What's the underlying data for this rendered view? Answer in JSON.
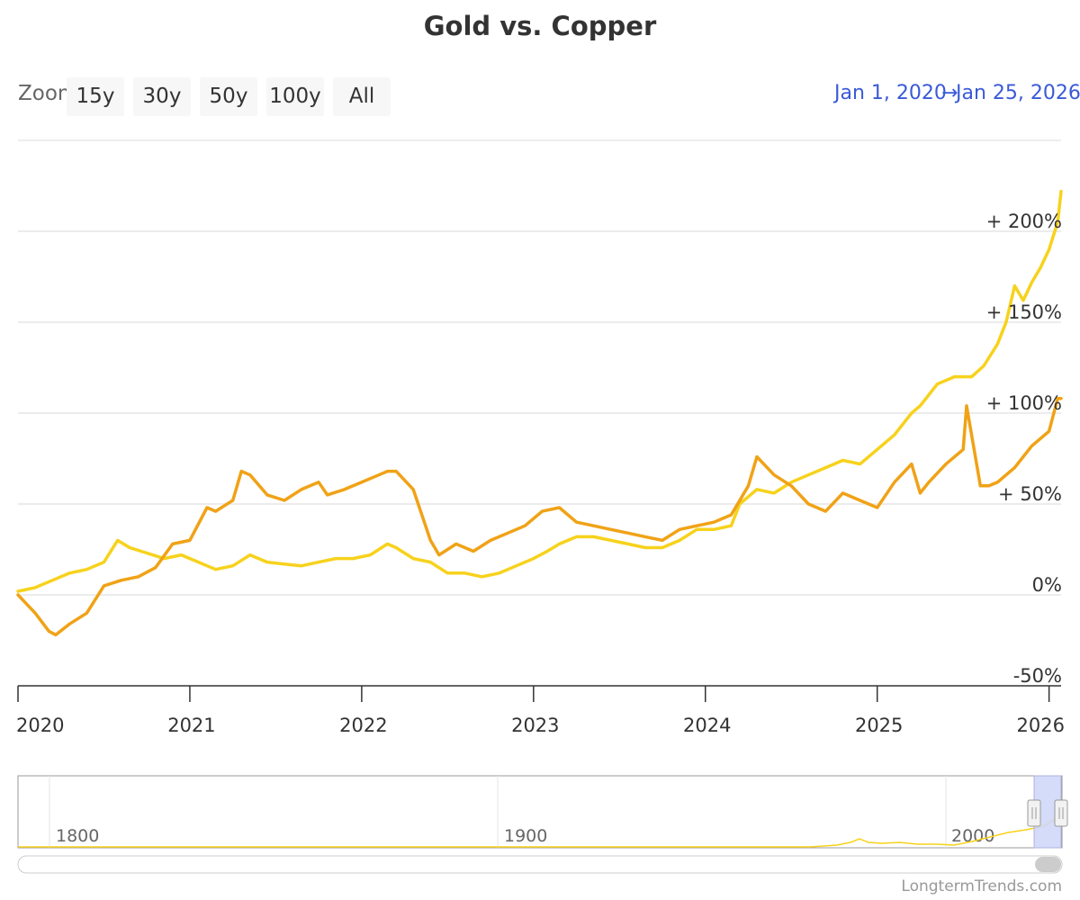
{
  "header": {
    "title": "Gold vs. Copper",
    "zoom_label": "Zoom",
    "zoom_buttons": [
      "15y",
      "30y",
      "50y",
      "100y",
      "All"
    ],
    "range_from": "Jan 1, 2020",
    "range_separator": "→",
    "range_to": "Jan 25, 2026"
  },
  "colors": {
    "gold": "#f7d21c",
    "copper": "#f0a216",
    "grid": "#e6e6e6",
    "navigator_mask": "#ccd6f8",
    "range_text": "#3a5ad8"
  },
  "chart_data": {
    "type": "line",
    "xlim": [
      2020.0,
      2026.07
    ],
    "ylim": [
      -50,
      250
    ],
    "y_ticks": [
      -50,
      0,
      50,
      100,
      150,
      200
    ],
    "y_tick_labels": [
      "-50%",
      "0%",
      "+ 50%",
      "+ 100%",
      "+ 150%",
      "+ 200%"
    ],
    "x_ticks": [
      2020,
      2021,
      2022,
      2023,
      2024,
      2025,
      2026
    ],
    "x_tick_labels": [
      "2020",
      "2021",
      "2022",
      "2023",
      "2024",
      "2025",
      "2026"
    ],
    "grid": true,
    "legend": "none",
    "series": [
      {
        "color": "#f7d21c",
        "x": [
          2020.0,
          2020.1,
          2020.2,
          2020.3,
          2020.4,
          2020.5,
          2020.58,
          2020.65,
          2020.75,
          2020.85,
          2020.95,
          2021.05,
          2021.15,
          2021.25,
          2021.35,
          2021.45,
          2021.55,
          2021.65,
          2021.75,
          2021.85,
          2021.95,
          2022.05,
          2022.15,
          2022.2,
          2022.3,
          2022.4,
          2022.5,
          2022.6,
          2022.7,
          2022.8,
          2022.9,
          2023.0,
          2023.08,
          2023.15,
          2023.25,
          2023.35,
          2023.45,
          2023.55,
          2023.65,
          2023.75,
          2023.85,
          2023.95,
          2024.05,
          2024.15,
          2024.2,
          2024.3,
          2024.4,
          2024.5,
          2024.6,
          2024.7,
          2024.8,
          2024.9,
          2025.0,
          2025.1,
          2025.2,
          2025.25,
          2025.35,
          2025.45,
          2025.55,
          2025.62,
          2025.7,
          2025.75,
          2025.8,
          2025.85,
          2025.9,
          2025.95,
          2026.0,
          2026.05,
          2026.07
        ],
        "y": [
          2,
          4,
          8,
          12,
          14,
          18,
          30,
          26,
          23,
          20,
          22,
          18,
          14,
          16,
          22,
          18,
          17,
          16,
          18,
          20,
          20,
          22,
          28,
          26,
          20,
          18,
          12,
          12,
          10,
          12,
          16,
          20,
          24,
          28,
          32,
          32,
          30,
          28,
          26,
          26,
          30,
          36,
          36,
          38,
          50,
          58,
          56,
          62,
          66,
          70,
          74,
          72,
          80,
          88,
          100,
          104,
          116,
          120,
          120,
          126,
          138,
          150,
          170,
          162,
          172,
          180,
          190,
          205,
          222
        ]
      },
      {
        "color": "#f0a216",
        "x": [
          2020.0,
          2020.05,
          2020.1,
          2020.18,
          2020.22,
          2020.3,
          2020.4,
          2020.5,
          2020.6,
          2020.7,
          2020.8,
          2020.9,
          2021.0,
          2021.1,
          2021.15,
          2021.25,
          2021.3,
          2021.35,
          2021.45,
          2021.55,
          2021.65,
          2021.75,
          2021.8,
          2021.9,
          2022.0,
          2022.1,
          2022.15,
          2022.2,
          2022.3,
          2022.4,
          2022.45,
          2022.55,
          2022.65,
          2022.75,
          2022.85,
          2022.95,
          2023.05,
          2023.15,
          2023.25,
          2023.35,
          2023.45,
          2023.55,
          2023.65,
          2023.75,
          2023.85,
          2023.95,
          2024.05,
          2024.15,
          2024.25,
          2024.3,
          2024.4,
          2024.5,
          2024.6,
          2024.7,
          2024.8,
          2024.9,
          2025.0,
          2025.1,
          2025.2,
          2025.25,
          2025.3,
          2025.4,
          2025.5,
          2025.52,
          2025.6,
          2025.65,
          2025.7,
          2025.8,
          2025.9,
          2026.0,
          2026.05,
          2026.07
        ],
        "y": [
          0,
          -5,
          -10,
          -20,
          -22,
          -16,
          -10,
          5,
          8,
          10,
          15,
          28,
          30,
          48,
          46,
          52,
          68,
          66,
          55,
          52,
          58,
          62,
          55,
          58,
          62,
          66,
          68,
          68,
          58,
          30,
          22,
          28,
          24,
          30,
          34,
          38,
          46,
          48,
          40,
          38,
          36,
          34,
          32,
          30,
          36,
          38,
          40,
          44,
          60,
          76,
          66,
          60,
          50,
          46,
          56,
          52,
          48,
          62,
          72,
          56,
          62,
          72,
          80,
          104,
          60,
          60,
          62,
          70,
          82,
          90,
          108,
          108
        ]
      }
    ]
  },
  "navigator": {
    "tick_labels": [
      "1800",
      "1900",
      "2000"
    ],
    "credit": "LongtermTrends.com"
  }
}
